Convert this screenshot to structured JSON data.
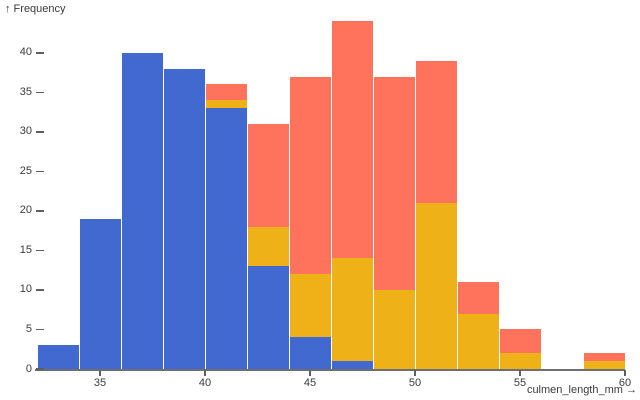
{
  "chart_data": {
    "type": "bar",
    "variant": "stacked-histogram",
    "title": "",
    "ylabel": "↑ Frequency",
    "xlabel": "culmen_length_mm →",
    "bin_edges": [
      32,
      34,
      36,
      38,
      40,
      42,
      44,
      46,
      48,
      50,
      52,
      54,
      56,
      58,
      60
    ],
    "series": [
      {
        "name": "series-blue",
        "color": "#4269d0",
        "values": [
          3,
          19,
          40,
          38,
          33,
          13,
          4,
          1,
          0,
          0,
          0,
          0,
          0,
          0
        ]
      },
      {
        "name": "series-gold",
        "color": "#efb118",
        "values": [
          0,
          0,
          0,
          0,
          1,
          5,
          8,
          13,
          10,
          21,
          7,
          2,
          0,
          1
        ]
      },
      {
        "name": "series-red",
        "color": "#ff725c",
        "values": [
          0,
          0,
          0,
          0,
          2,
          13,
          25,
          30,
          27,
          18,
          4,
          3,
          0,
          1
        ]
      }
    ],
    "bin_totals": [
      3,
      19,
      40,
      38,
      36,
      31,
      37,
      44,
      37,
      39,
      11,
      5,
      0,
      2
    ],
    "x_ticks": [
      35,
      40,
      45,
      50,
      55,
      60
    ],
    "y_ticks": [
      0,
      5,
      10,
      15,
      20,
      25,
      30,
      35,
      40
    ],
    "xlim": [
      32,
      60
    ],
    "ylim": [
      0,
      45
    ],
    "grid": false,
    "legend_position": "none",
    "colors": {
      "axis_line": "#6e6e6e",
      "tick_mark": "#5f5f5f",
      "text": "#3b3b3b",
      "background": "#ffffff"
    }
  }
}
